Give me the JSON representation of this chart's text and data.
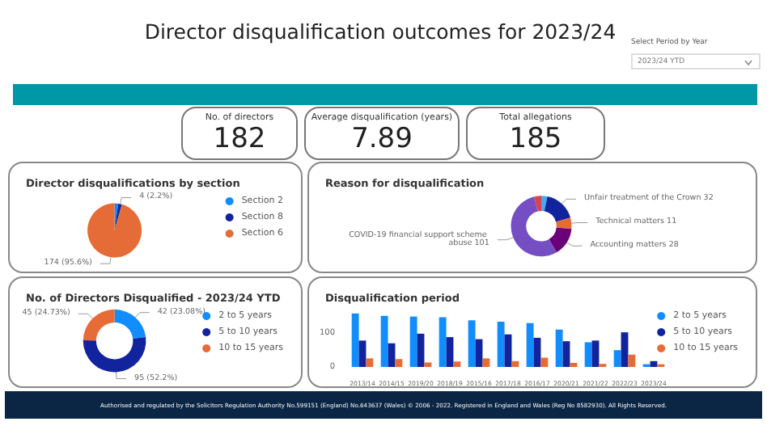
{
  "chart_data": [
    {
      "type": "other",
      "title": "Director disqualification outcomes for 2023/24",
      "annotations": [
        "No. of directors",
        "182",
        "Average disqualification (years)",
        "7.89",
        "Total allegations",
        "185",
        "Select Period by Year",
        "2023/24 YTD",
        "Authorised and regulated by the Solicitors Regulation Authority No.599151 (England) No.643637 (Wales) © 2006 - 2022. Registered in England and Wales (Reg No 8582930). All Rights Reserved."
      ]
    },
    {
      "type": "pie",
      "title": "Director disqualifications by section",
      "categories": [
        "Section 2",
        "Section 8",
        "Section 6"
      ],
      "values": [
        4,
        4,
        174
      ],
      "colors": [
        "#118dff",
        "#12239e",
        "#e66c37"
      ],
      "value_labels": [
        null,
        "4 (2.2%)",
        "174 (95.6%)"
      ],
      "legend": "right"
    },
    {
      "type": "donut",
      "title": "Reason for disqualification",
      "categories": [
        null,
        "Unfair treatment of the Crown",
        "Technical matters",
        "Accounting matters",
        "COVID-19 financial support scheme abuse",
        null
      ],
      "values": [
        6,
        32,
        11,
        28,
        101,
        7
      ],
      "colors": [
        "#4aa8f0",
        "#12239e",
        "#e66c37",
        "#6b007b",
        "#744ec2",
        "#d64550"
      ],
      "value_labels": [
        null,
        "32",
        "11",
        "28",
        "101",
        null
      ],
      "legend": false
    },
    {
      "type": "donut",
      "title": "No. of Directors Disqualified - 2023/24 YTD",
      "categories": [
        "2 to 5 years",
        "5 to 10 years",
        "10 to 15 years"
      ],
      "values": [
        42,
        95,
        45
      ],
      "colors": [
        "#118dff",
        "#12239e",
        "#e66c37"
      ],
      "value_labels": [
        "42 (23.08%)",
        "95 (52.2%)",
        "45 (24.73%)"
      ],
      "legend": "right"
    },
    {
      "type": "bar",
      "title": "Disqualification period",
      "categories": [
        "2013/14",
        "2014/15",
        "2019/20",
        "2018/19",
        "2015/16",
        "2017/18",
        "2016/17",
        "2020/21",
        "2021/22",
        "2022/23",
        "2023/24"
      ],
      "ylim": [
        0,
        165
      ],
      "yticks": [
        0,
        100
      ],
      "grid": false,
      "legend": "right",
      "series": [
        {
          "name": "2 to 5 years",
          "color": "#118dff",
          "values": [
            156,
            149,
            147,
            145,
            136,
            132,
            128,
            109,
            72,
            49,
            8
          ]
        },
        {
          "name": "5 to 10 years",
          "color": "#12239e",
          "values": [
            77,
            69,
            97,
            87,
            81,
            95,
            85,
            75,
            77,
            101,
            17
          ]
        },
        {
          "name": "10 to 15 years",
          "color": "#e66c37",
          "values": [
            25,
            23,
            13,
            16,
            25,
            17,
            27,
            12,
            9,
            36,
            8
          ]
        }
      ]
    }
  ]
}
